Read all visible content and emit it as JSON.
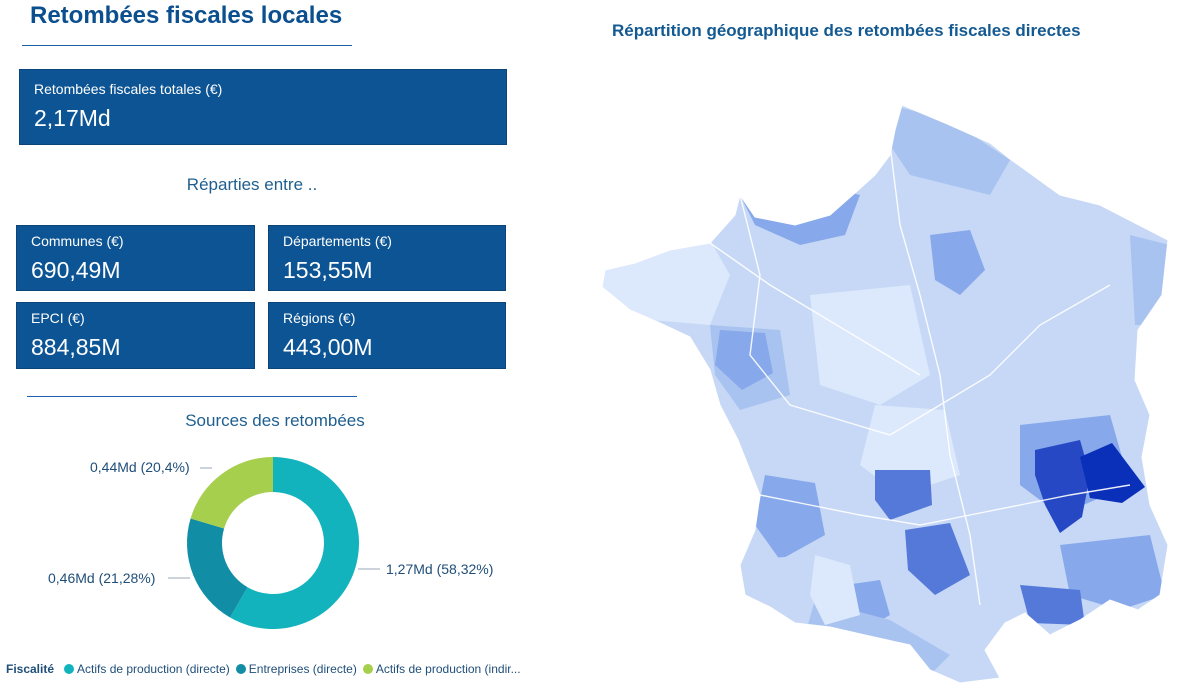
{
  "page_title": "Retombées fiscales locales",
  "total": {
    "label": "Retombées fiscales totales (€)",
    "value": "2,17Md"
  },
  "split_title": "Réparties entre ..",
  "breakdown": {
    "communes": {
      "label": "Communes (€)",
      "value": "690,49M"
    },
    "departements": {
      "label": "Départements (€)",
      "value": "153,55M"
    },
    "epci": {
      "label": "EPCI (€)",
      "value": "884,85M"
    },
    "regions": {
      "label": "Régions (€)",
      "value": "443,00M"
    }
  },
  "sources_title": "Sources des retombées",
  "map_title": "Répartition géographique des retombées fiscales directes",
  "chart_data": {
    "type": "pie",
    "style": "donut",
    "title": "Sources des retombées",
    "legend_title": "Fiscalité",
    "legend_position": "bottom-left",
    "slices": [
      {
        "name": "Actifs de production (directe)",
        "value": 1.27,
        "percent": 58.32,
        "label": "1,27Md (58,32%)",
        "legend_label": "Actifs de production (directe)",
        "color": "#12b3bd"
      },
      {
        "name": "Entreprises (directe)",
        "value": 0.46,
        "percent": 21.28,
        "label": "0,46Md (21,28%)",
        "legend_label": "Entreprises (directe)",
        "color": "#128da6"
      },
      {
        "name": "Actifs de production (indirecte)",
        "value": 0.44,
        "percent": 20.4,
        "label": "0,44Md (20,4%)",
        "legend_label": "Actifs de production (indir...",
        "color": "#a6cf4e"
      }
    ]
  },
  "map": {
    "colors": {
      "very_light": "#dce8fb",
      "light": "#c6d8f6",
      "mid": "#a9c3f0",
      "medium": "#87a8ea",
      "strong": "#5579d8",
      "darker": "#2648c4",
      "darkest": "#0a2fb8"
    }
  }
}
